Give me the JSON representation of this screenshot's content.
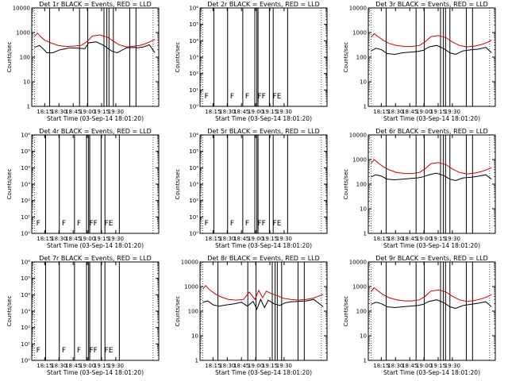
{
  "colors": {
    "events": "#000000",
    "lld": "#cc0000",
    "background": "#ffffff",
    "frame": "#000000"
  },
  "x_ticks": [
    "18:15",
    "18:30",
    "18:45",
    "19:00",
    "19:15",
    "19:30"
  ],
  "xlabel": "Start Time (03-Sep-14 18:01:20)",
  "ylabel": "Counts/sec",
  "chart_data": [
    {
      "type": "line",
      "title": "Det 1r BLACK = Events, RED = LLD",
      "scale": "log",
      "ylim": [
        1,
        10000
      ],
      "y_tick_labels": [
        "10000",
        "1000",
        "100",
        "10",
        "1"
      ],
      "x_ticks": [
        "18:15",
        "18:30",
        "18:45",
        "19:00",
        "19:15",
        "19:30"
      ],
      "xlabel": "Start Time (03-Sep-14 18:01:20)",
      "ylabel": "Counts/sec",
      "event_lines_min": [
        18.9,
        50.4,
        59.1,
        76.2,
        79.2,
        81.5,
        86.1,
        103.4,
        110.0
      ],
      "markers": [],
      "has_data": true,
      "series": [
        {
          "name": "BLACK = Events",
          "x": [
            3,
            8,
            12,
            16,
            22,
            30,
            36,
            40,
            50,
            56,
            60,
            68,
            76,
            84,
            90,
            100,
            108,
            112,
            118,
            124,
            130
          ],
          "y": [
            250,
            300,
            220,
            150,
            150,
            200,
            220,
            240,
            230,
            220,
            380,
            420,
            300,
            180,
            150,
            240,
            250,
            240,
            260,
            320,
            150
          ]
        },
        {
          "name": "RED = LLD",
          "x": [
            3,
            6,
            10,
            14,
            20,
            28,
            36,
            44,
            52,
            58,
            64,
            72,
            80,
            86,
            92,
            100,
            108,
            114,
            120,
            126,
            130
          ],
          "y": [
            700,
            950,
            650,
            480,
            380,
            300,
            270,
            280,
            300,
            420,
            720,
            800,
            650,
            450,
            320,
            260,
            280,
            300,
            350,
            450,
            520
          ]
        }
      ]
    },
    {
      "type": "line",
      "title": "Det 2r BLACK = Events, RED = LLD",
      "scale": "log",
      "ylim": [
        1,
        1000000
      ],
      "y_tick_labels": [
        "10⁶",
        "10⁵",
        "10⁴",
        "10³",
        "10²",
        "10¹",
        "10⁰"
      ],
      "x_ticks": [
        "18:15",
        "18:30",
        "18:45",
        "19:00",
        "19:15",
        "19:30"
      ],
      "xlabel": "Start Time (03-Sep-14 18:01:20)",
      "ylabel": "Counts/sec",
      "event_lines_min": [
        14.6,
        29.1,
        45.1,
        57.8,
        60.0,
        61.2,
        73.2,
        77.2,
        92.4
      ],
      "markers": [
        {
          "label": "F",
          "x": 3
        },
        {
          "label": "F",
          "x": 30
        },
        {
          "label": "F",
          "x": 46
        },
        {
          "label": "FF",
          "x": 59
        },
        {
          "label": "FE",
          "x": 75
        }
      ],
      "has_data": false,
      "series": []
    },
    {
      "type": "line",
      "title": "Det 3r BLACK = Events, RED = LLD",
      "scale": "log",
      "ylim": [
        1,
        10000
      ],
      "y_tick_labels": [
        "10000",
        "1000",
        "100",
        "10",
        "1"
      ],
      "x_ticks": [
        "18:15",
        "18:30",
        "18:45",
        "19:00",
        "19:15",
        "19:30"
      ],
      "xlabel": "Start Time (03-Sep-14 18:01:20)",
      "ylabel": "Counts/sec",
      "event_lines_min": [
        18.9,
        50.4,
        59.1,
        76.2,
        79.2,
        81.5,
        86.1,
        103.4,
        110.0
      ],
      "markers": [],
      "has_data": true,
      "series": [
        {
          "name": "BLACK = Events",
          "x": [
            3,
            8,
            14,
            20,
            28,
            36,
            44,
            52,
            58,
            64,
            72,
            80,
            86,
            92,
            100,
            108,
            116,
            124,
            130
          ],
          "y": [
            180,
            230,
            200,
            140,
            130,
            150,
            160,
            170,
            190,
            260,
            300,
            220,
            150,
            130,
            180,
            200,
            210,
            250,
            150
          ]
        },
        {
          "name": "RED = LLD",
          "x": [
            3,
            6,
            10,
            16,
            22,
            30,
            38,
            46,
            54,
            60,
            66,
            74,
            82,
            88,
            96,
            104,
            112,
            120,
            126,
            130
          ],
          "y": [
            650,
            900,
            700,
            480,
            360,
            300,
            270,
            270,
            300,
            420,
            680,
            760,
            620,
            430,
            300,
            260,
            280,
            330,
            400,
            500
          ]
        }
      ]
    },
    {
      "type": "line",
      "title": "Det 4r BLACK = Events, RED = LLD",
      "scale": "log",
      "ylim": [
        1,
        1000000
      ],
      "y_tick_labels": [
        "10⁶",
        "10⁵",
        "10⁴",
        "10³",
        "10²",
        "10¹",
        "10⁰"
      ],
      "x_ticks": [
        "18:15",
        "18:30",
        "18:45",
        "19:00",
        "19:15",
        "19:30"
      ],
      "xlabel": "Start Time (03-Sep-14 18:01:20)",
      "ylabel": "Counts/sec",
      "event_lines_min": [
        14.6,
        29.1,
        45.1,
        57.8,
        60.0,
        61.2,
        73.2,
        77.2,
        92.4
      ],
      "markers": [
        {
          "label": "F",
          "x": 3
        },
        {
          "label": "F",
          "x": 30
        },
        {
          "label": "F",
          "x": 46
        },
        {
          "label": "FF",
          "x": 59
        },
        {
          "label": "FE",
          "x": 75
        }
      ],
      "has_data": false,
      "series": []
    },
    {
      "type": "line",
      "title": "Det 5r BLACK = Events, RED = LLD",
      "scale": "log",
      "ylim": [
        1,
        1000000
      ],
      "y_tick_labels": [
        "10⁶",
        "10⁵",
        "10⁴",
        "10³",
        "10²",
        "10¹",
        "10⁰"
      ],
      "x_ticks": [
        "18:15",
        "18:30",
        "18:45",
        "19:00",
        "19:15",
        "19:30"
      ],
      "xlabel": "Start Time (03-Sep-14 18:01:20)",
      "ylabel": "Counts/sec",
      "event_lines_min": [
        14.6,
        29.1,
        45.1,
        57.8,
        60.0,
        61.2,
        73.2,
        77.2,
        92.4
      ],
      "markers": [
        {
          "label": "F",
          "x": 3
        },
        {
          "label": "F",
          "x": 30
        },
        {
          "label": "F",
          "x": 46
        },
        {
          "label": "FF",
          "x": 59
        },
        {
          "label": "FE",
          "x": 75
        }
      ],
      "has_data": false,
      "series": []
    },
    {
      "type": "line",
      "title": "Det 6r BLACK = Events, RED = LLD",
      "scale": "log",
      "ylim": [
        1,
        10000
      ],
      "y_tick_labels": [
        "10000",
        "1000",
        "100",
        "10",
        "1"
      ],
      "x_ticks": [
        "18:15",
        "18:30",
        "18:45",
        "19:00",
        "19:15",
        "19:30"
      ],
      "xlabel": "Start Time (03-Sep-14 18:01:20)",
      "ylabel": "Counts/sec",
      "event_lines_min": [
        18.9,
        50.4,
        59.1,
        76.2,
        79.2,
        81.5,
        86.1,
        103.4,
        110.0
      ],
      "markers": [],
      "has_data": true,
      "series": [
        {
          "name": "BLACK = Events",
          "x": [
            3,
            8,
            14,
            20,
            28,
            36,
            44,
            52,
            58,
            64,
            72,
            80,
            86,
            92,
            100,
            108,
            116,
            124,
            130
          ],
          "y": [
            200,
            240,
            210,
            160,
            150,
            160,
            170,
            180,
            200,
            240,
            280,
            220,
            160,
            140,
            180,
            190,
            210,
            240,
            160
          ]
        },
        {
          "name": "RED = LLD",
          "x": [
            3,
            6,
            10,
            16,
            22,
            30,
            38,
            46,
            54,
            60,
            66,
            74,
            82,
            88,
            96,
            104,
            112,
            120,
            126,
            130
          ],
          "y": [
            700,
            1000,
            750,
            500,
            380,
            300,
            270,
            270,
            300,
            420,
            680,
            760,
            620,
            430,
            300,
            260,
            280,
            330,
            400,
            480
          ]
        }
      ]
    },
    {
      "type": "line",
      "title": "Det 7r BLACK = Events, RED = LLD",
      "scale": "log",
      "ylim": [
        1,
        1000000
      ],
      "y_tick_labels": [
        "10⁶",
        "10⁵",
        "10⁴",
        "10³",
        "10²",
        "10¹",
        "10⁰"
      ],
      "x_ticks": [
        "18:15",
        "18:30",
        "18:45",
        "19:00",
        "19:15",
        "19:30"
      ],
      "xlabel": "Start Time (03-Sep-14 18:01:20)",
      "ylabel": "Counts/sec",
      "event_lines_min": [
        14.6,
        29.1,
        45.1,
        57.8,
        60.0,
        61.2,
        73.2,
        77.2,
        92.4
      ],
      "markers": [
        {
          "label": "F",
          "x": 3
        },
        {
          "label": "F",
          "x": 30
        },
        {
          "label": "F",
          "x": 46
        },
        {
          "label": "FF",
          "x": 59
        },
        {
          "label": "FE",
          "x": 75
        }
      ],
      "has_data": false,
      "series": []
    },
    {
      "type": "line",
      "title": "Det 8r BLACK = Events, RED = LLD",
      "scale": "log",
      "ylim": [
        1,
        10000
      ],
      "y_tick_labels": [
        "10000",
        "1000",
        "100",
        "10",
        "1"
      ],
      "x_ticks": [
        "18:15",
        "18:30",
        "18:45",
        "19:00",
        "19:15",
        "19:30"
      ],
      "xlabel": "Start Time (03-Sep-14 18:01:20)",
      "ylabel": "Counts/sec",
      "event_lines_min": [
        18.9,
        50.4,
        59.1,
        76.2,
        79.2,
        81.5,
        86.1,
        103.4,
        110.0
      ],
      "markers": [],
      "has_data": true,
      "series": [
        {
          "name": "BLACK = Events",
          "x": [
            3,
            8,
            14,
            20,
            28,
            36,
            44,
            50,
            56,
            60,
            64,
            68,
            72,
            78,
            84,
            90,
            96,
            104,
            112,
            120,
            126,
            130
          ],
          "y": [
            230,
            260,
            180,
            160,
            180,
            200,
            230,
            160,
            250,
            120,
            300,
            140,
            280,
            200,
            170,
            220,
            240,
            250,
            260,
            300,
            200,
            150
          ]
        },
        {
          "name": "RED = LLD",
          "x": [
            3,
            6,
            10,
            16,
            22,
            30,
            38,
            46,
            52,
            58,
            62,
            66,
            70,
            76,
            82,
            88,
            96,
            104,
            112,
            120,
            126,
            130
          ],
          "y": [
            800,
            1100,
            750,
            500,
            380,
            300,
            280,
            300,
            600,
            300,
            700,
            350,
            650,
            500,
            420,
            330,
            300,
            280,
            300,
            340,
            420,
            480
          ]
        }
      ]
    },
    {
      "type": "line",
      "title": "Det 9r BLACK = Events, RED = LLD",
      "scale": "log",
      "ylim": [
        1,
        10000
      ],
      "y_tick_labels": [
        "10000",
        "1000",
        "100",
        "10",
        "1"
      ],
      "x_ticks": [
        "18:15",
        "18:30",
        "18:45",
        "19:00",
        "19:15",
        "19:30"
      ],
      "xlabel": "Start Time (03-Sep-14 18:01:20)",
      "ylabel": "Counts/sec",
      "event_lines_min": [
        18.9,
        50.4,
        59.1,
        76.2,
        79.2,
        81.5,
        86.1,
        103.4,
        110.0
      ],
      "markers": [],
      "has_data": true,
      "series": [
        {
          "name": "BLACK = Events",
          "x": [
            3,
            8,
            14,
            20,
            28,
            36,
            44,
            52,
            58,
            64,
            72,
            80,
            86,
            92,
            100,
            108,
            116,
            124,
            130
          ],
          "y": [
            190,
            230,
            200,
            150,
            140,
            150,
            160,
            170,
            190,
            250,
            290,
            220,
            150,
            130,
            170,
            190,
            210,
            240,
            150
          ]
        },
        {
          "name": "RED = LLD",
          "x": [
            3,
            6,
            10,
            16,
            22,
            30,
            38,
            46,
            54,
            60,
            66,
            74,
            82,
            88,
            96,
            104,
            112,
            120,
            126,
            130
          ],
          "y": [
            620,
            900,
            680,
            460,
            350,
            290,
            260,
            260,
            290,
            400,
            650,
            740,
            600,
            420,
            290,
            250,
            270,
            320,
            390,
            480
          ]
        }
      ]
    }
  ]
}
